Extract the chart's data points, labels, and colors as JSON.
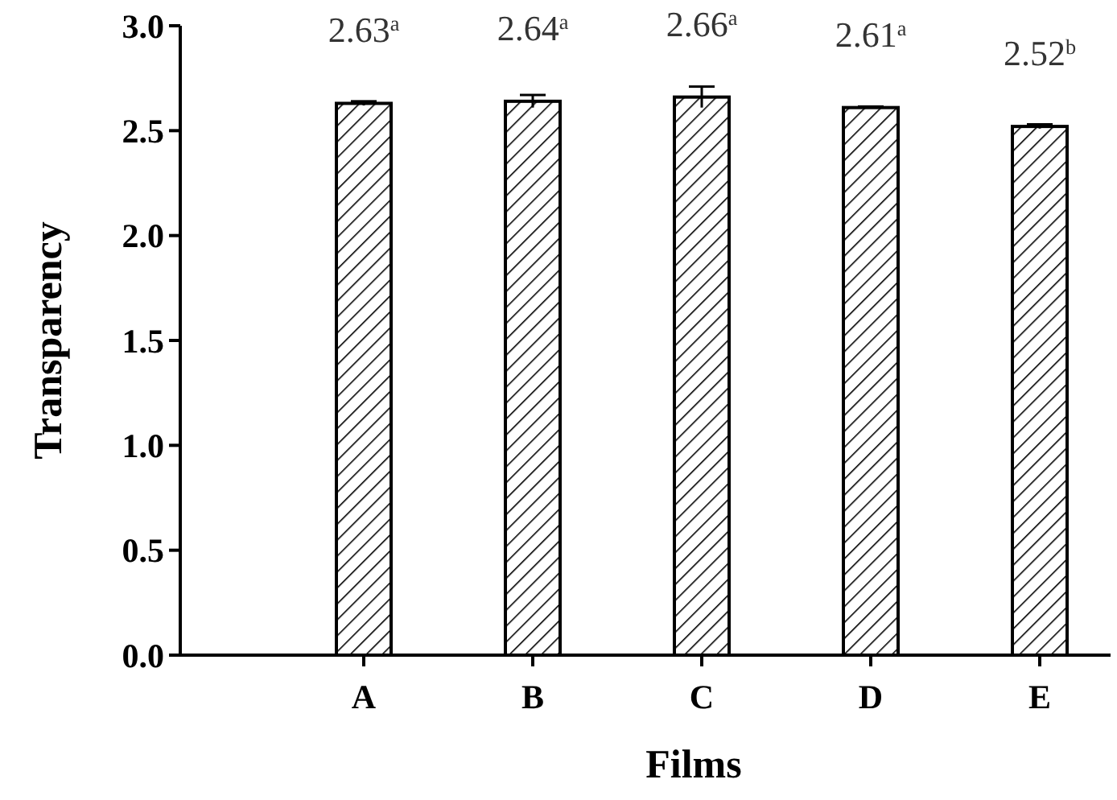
{
  "chart_data": {
    "type": "bar",
    "xlabel": "Films",
    "ylabel": "Transparency",
    "categories": [
      "A",
      "B",
      "C",
      "D",
      "E"
    ],
    "values": [
      2.63,
      2.64,
      2.66,
      2.61,
      2.52
    ],
    "errors": [
      0.01,
      0.03,
      0.05,
      0.005,
      0.01
    ],
    "value_labels": [
      "2.63$^{a}$",
      "2.64$^{a}$",
      "2.66$^{a}$",
      "2.61$^{a}$",
      "2.52$^{b}$"
    ],
    "color": "#000000",
    "ylim": [
      0,
      3
    ],
    "yticks": [
      {
        "value": 0,
        "label": "0.0"
      },
      {
        "value": 0.5,
        "label": "0.5"
      },
      {
        "value": 1,
        "label": "1.0"
      },
      {
        "value": 1.5,
        "label": "1.5"
      },
      {
        "value": 2,
        "label": "2.0"
      },
      {
        "value": 2.5,
        "label": "2.5"
      },
      {
        "value": 3,
        "label": "3.0"
      }
    ]
  }
}
